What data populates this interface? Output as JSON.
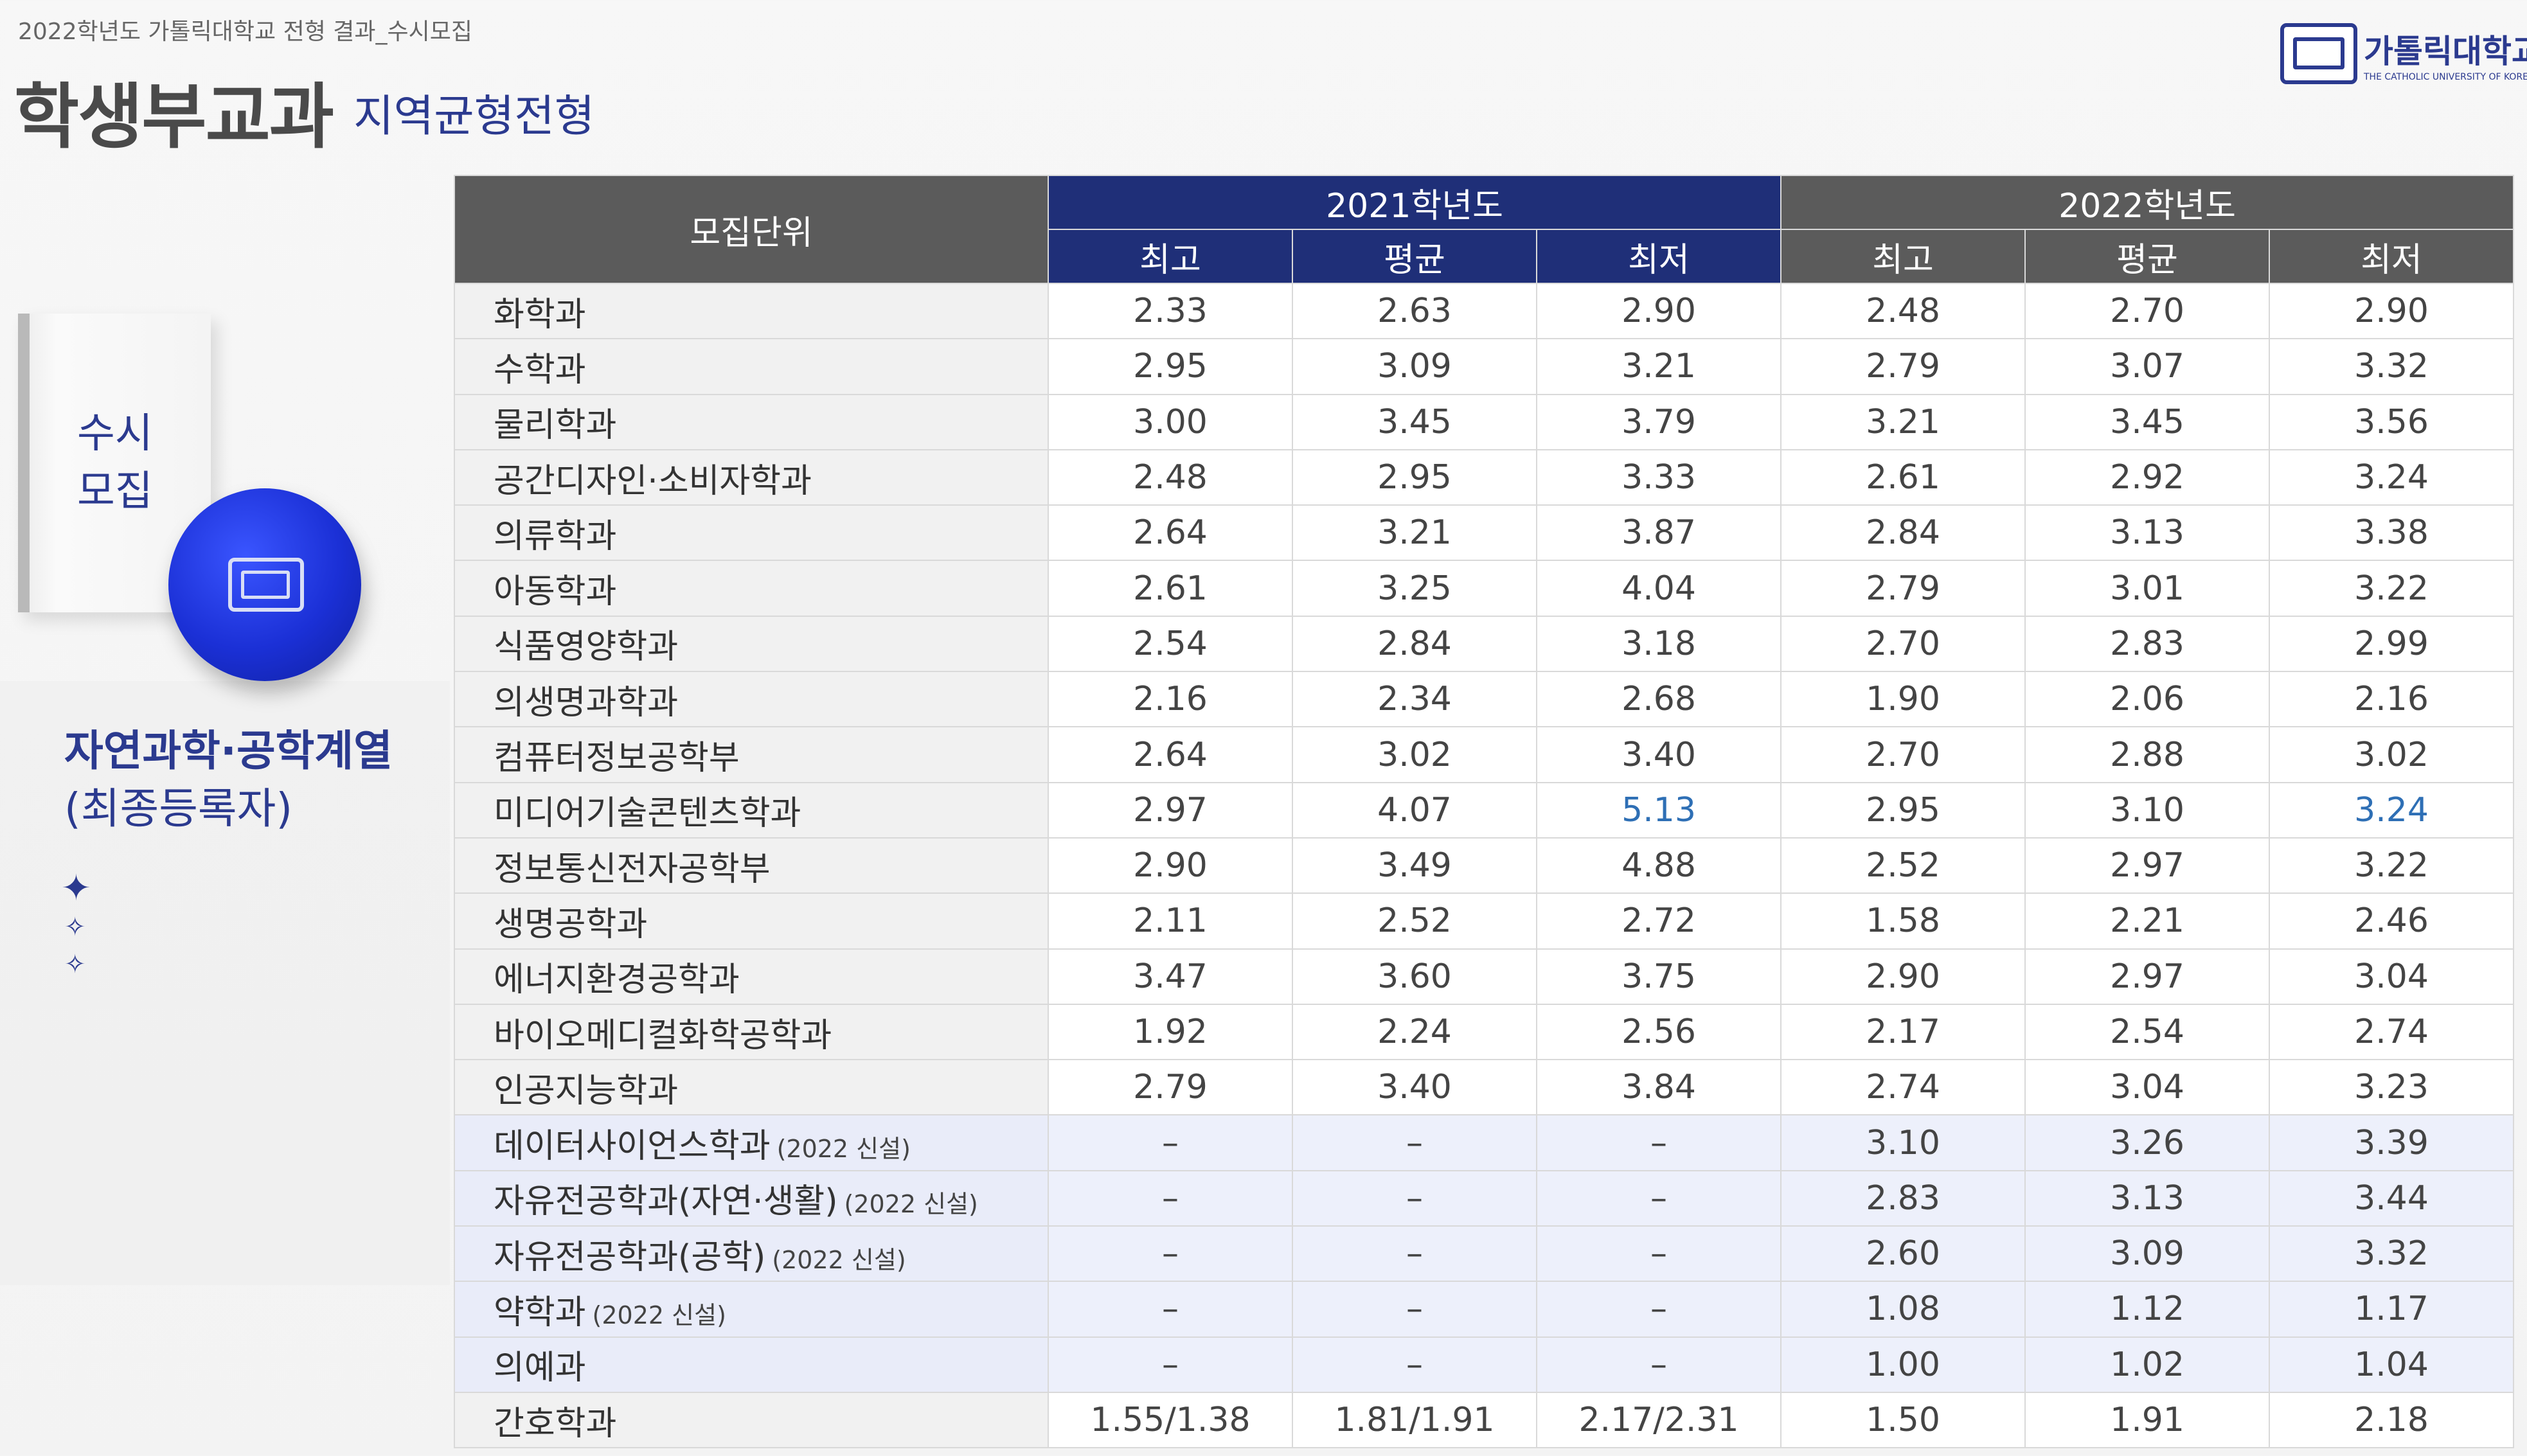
{
  "header": {
    "caption": "2022학년도 가톨릭대학교 전형 결과_수시모집",
    "title": "학생부교과",
    "subtitle": "지역균형전형"
  },
  "logo": {
    "name": "가톨릭대학교",
    "english": "THE CATHOLIC UNIVERSITY OF KOREA",
    "color": "#2b3a8f"
  },
  "sidebar": {
    "book_label_line1": "수시",
    "book_label_line2": "모집",
    "field_title": "자연과학·공학계열",
    "field_subtitle": "(최종등록자)",
    "accent_color": "#2b3a8f",
    "ball_color": "#1b30d6"
  },
  "table": {
    "unit_header": "모집단위",
    "year1": "2021학년도",
    "year2": "2022학년도",
    "sub_headers": [
      "최고",
      "평균",
      "최저",
      "최고",
      "평균",
      "최저"
    ],
    "rows": [
      {
        "unit": "화학과",
        "note": "",
        "v": [
          "2.33",
          "2.63",
          "2.90",
          "2.48",
          "2.70",
          "2.90"
        ]
      },
      {
        "unit": "수학과",
        "note": "",
        "v": [
          "2.95",
          "3.09",
          "3.21",
          "2.79",
          "3.07",
          "3.32"
        ]
      },
      {
        "unit": "물리학과",
        "note": "",
        "v": [
          "3.00",
          "3.45",
          "3.79",
          "3.21",
          "3.45",
          "3.56"
        ]
      },
      {
        "unit": "공간디자인·소비자학과",
        "note": "",
        "v": [
          "2.48",
          "2.95",
          "3.33",
          "2.61",
          "2.92",
          "3.24"
        ]
      },
      {
        "unit": "의류학과",
        "note": "",
        "v": [
          "2.64",
          "3.21",
          "3.87",
          "2.84",
          "3.13",
          "3.38"
        ]
      },
      {
        "unit": "아동학과",
        "note": "",
        "v": [
          "2.61",
          "3.25",
          "4.04",
          "2.79",
          "3.01",
          "3.22"
        ]
      },
      {
        "unit": "식품영양학과",
        "note": "",
        "v": [
          "2.54",
          "2.84",
          "3.18",
          "2.70",
          "2.83",
          "2.99"
        ]
      },
      {
        "unit": "의생명과학과",
        "note": "",
        "v": [
          "2.16",
          "2.34",
          "2.68",
          "1.90",
          "2.06",
          "2.16"
        ]
      },
      {
        "unit": "컴퓨터정보공학부",
        "note": "",
        "v": [
          "2.64",
          "3.02",
          "3.40",
          "2.70",
          "2.88",
          "3.02"
        ]
      },
      {
        "unit": "미디어기술콘텐츠학과",
        "note": "",
        "v": [
          "2.97",
          "4.07",
          "5.13",
          "2.95",
          "3.10",
          "3.24"
        ],
        "highlight": [
          2,
          5
        ]
      },
      {
        "unit": "정보통신전자공학부",
        "note": "",
        "v": [
          "2.90",
          "3.49",
          "4.88",
          "2.52",
          "2.97",
          "3.22"
        ]
      },
      {
        "unit": "생명공학과",
        "note": "",
        "v": [
          "2.11",
          "2.52",
          "2.72",
          "1.58",
          "2.21",
          "2.46"
        ]
      },
      {
        "unit": "에너지환경공학과",
        "note": "",
        "v": [
          "3.47",
          "3.60",
          "3.75",
          "2.90",
          "2.97",
          "3.04"
        ]
      },
      {
        "unit": "바이오메디컬화학공학과",
        "note": "",
        "v": [
          "1.92",
          "2.24",
          "2.56",
          "2.17",
          "2.54",
          "2.74"
        ]
      },
      {
        "unit": "인공지능학과",
        "note": "",
        "v": [
          "2.79",
          "3.40",
          "3.84",
          "2.74",
          "3.04",
          "3.23"
        ]
      },
      {
        "unit": "데이터사이언스학과",
        "note": "(2022 신설)",
        "v": [
          "–",
          "–",
          "–",
          "3.10",
          "3.26",
          "3.39"
        ],
        "new": true
      },
      {
        "unit": "자유전공학과(자연·생활)",
        "note": "(2022 신설)",
        "v": [
          "–",
          "–",
          "–",
          "2.83",
          "3.13",
          "3.44"
        ],
        "new": true
      },
      {
        "unit": "자유전공학과(공학)",
        "note": "(2022 신설)",
        "v": [
          "–",
          "–",
          "–",
          "2.60",
          "3.09",
          "3.32"
        ],
        "new": true
      },
      {
        "unit": "약학과",
        "note": "(2022 신설)",
        "v": [
          "–",
          "–",
          "–",
          "1.08",
          "1.12",
          "1.17"
        ],
        "new": true
      },
      {
        "unit": "의예과",
        "note": "",
        "v": [
          "–",
          "–",
          "–",
          "1.00",
          "1.02",
          "1.04"
        ],
        "new": true
      },
      {
        "unit": "간호학과",
        "note": "",
        "v": [
          "1.55/1.38",
          "1.81/1.91",
          "2.17/2.31",
          "1.50",
          "1.91",
          "2.18"
        ]
      }
    ],
    "header_color_2021": "#1f2f78",
    "header_color_2022": "#5b5b5b",
    "highlight_color": "#2e6fb5",
    "new_row_color": "#edf0fb"
  }
}
